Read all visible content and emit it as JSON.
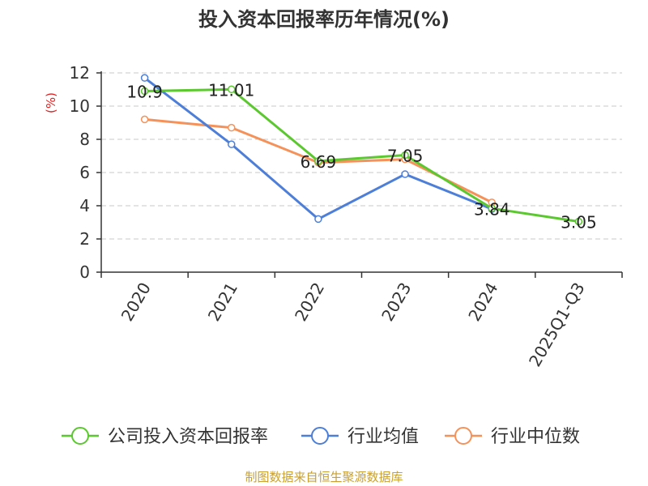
{
  "chart_data": {
    "type": "line",
    "title": "投入资本回报率历年情况(%)",
    "ylabel": "(%)",
    "xlabel": "",
    "categories": [
      "2020",
      "2021",
      "2022",
      "2023",
      "2024",
      "2025Q1-Q3"
    ],
    "ylim": [
      0,
      12
    ],
    "yticks": [
      0,
      2,
      4,
      6,
      8,
      10,
      12
    ],
    "grid": true,
    "legend_position": "bottom",
    "series": [
      {
        "name": "公司投入资本回报率",
        "color": "#5cc830",
        "values": [
          10.9,
          11.01,
          6.69,
          7.05,
          3.84,
          3.05
        ],
        "labels": [
          "10.9",
          "11.01",
          "6.69",
          "7.05",
          "3.84",
          "3.05"
        ]
      },
      {
        "name": "行业均值",
        "color": "#4e7fd8",
        "values": [
          11.7,
          7.7,
          3.2,
          5.9,
          3.8,
          null
        ]
      },
      {
        "name": "行业中位数",
        "color": "#f5925a",
        "values": [
          9.2,
          8.7,
          6.6,
          6.8,
          4.2,
          null
        ]
      }
    ]
  },
  "footer": {
    "source": "制图数据来自恒生聚源数据库",
    "source_color": "#c8a032"
  }
}
